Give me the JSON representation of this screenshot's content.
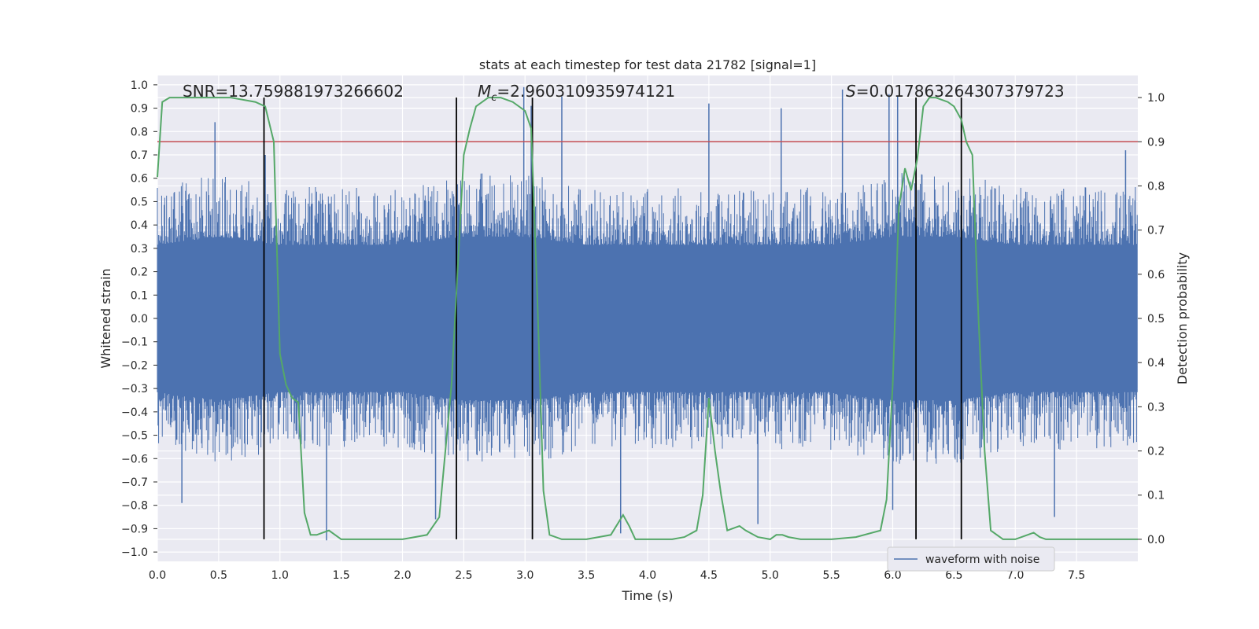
{
  "chart_data": {
    "type": "line",
    "title": "stats at each timestep for test data 21782 [signal=1]",
    "xlabel": "Time (s)",
    "ylabel": "Whitened strain",
    "y2label": "Detection probability",
    "xlim": [
      0.0,
      8.0
    ],
    "ylim": [
      -1.04,
      1.04
    ],
    "y2lim": [
      -0.05,
      1.05
    ],
    "x_ticks": [
      0.0,
      0.5,
      1.0,
      1.5,
      2.0,
      2.5,
      3.0,
      3.5,
      4.0,
      4.5,
      5.0,
      5.5,
      6.0,
      6.5,
      7.0,
      7.5
    ],
    "x_tick_labels": [
      "0.0",
      "0.5",
      "1.0",
      "1.5",
      "2.0",
      "2.5",
      "3.0",
      "3.5",
      "4.0",
      "4.5",
      "5.0",
      "5.5",
      "6.0",
      "6.5",
      "7.0",
      "7.5"
    ],
    "y_ticks": [
      1.0,
      0.9,
      0.8,
      0.7,
      0.6,
      0.5,
      0.4,
      0.3,
      0.2,
      0.1,
      0.0,
      -0.1,
      -0.2,
      -0.3,
      -0.4,
      -0.5,
      -0.6,
      -0.7,
      -0.8,
      -0.9,
      -1.0
    ],
    "y_tick_labels": [
      "1.0",
      "0.9",
      "0.8",
      "0.7",
      "0.6",
      "0.5",
      "0.4",
      "0.3",
      "0.2",
      "0.1",
      "0.0",
      "−0.1",
      "−0.2",
      "−0.3",
      "−0.4",
      "−0.5",
      "−0.6",
      "−0.7",
      "−0.8",
      "−0.9",
      "−1.0"
    ],
    "y2_ticks": [
      1.0,
      0.9,
      0.8,
      0.7,
      0.6,
      0.5,
      0.4,
      0.3,
      0.2,
      0.1,
      0.0
    ],
    "y2_tick_labels": [
      "1.0",
      "0.9",
      "0.8",
      "0.7",
      "0.6",
      "0.5",
      "0.4",
      "0.3",
      "0.2",
      "0.1",
      "0.0"
    ],
    "grid": true,
    "legend_position": "bottom-right",
    "annotations": {
      "snr": "SNR=13.759881973266602",
      "mc_symbol": "M",
      "mc_sub": "c",
      "mc_value": "=2.960310935974121",
      "s_symbol": "S",
      "s_value": "=0.017863264307379723"
    },
    "threshold": {
      "value": 0.9,
      "axis": "y2",
      "color": "#c44e52"
    },
    "event_lines": [
      0.87,
      2.44,
      3.06,
      6.19,
      6.56
    ],
    "series": [
      {
        "name": "waveform with noise",
        "color": "#4c72b0",
        "envelope": {
          "x": [
            0.0,
            0.5,
            1.0,
            1.5,
            2.0,
            2.5,
            3.0,
            3.5,
            4.0,
            4.5,
            5.0,
            5.5,
            6.0,
            6.5,
            7.0,
            7.5,
            8.0
          ],
          "typical_upper": [
            0.45,
            0.5,
            0.45,
            0.45,
            0.45,
            0.5,
            0.5,
            0.45,
            0.45,
            0.45,
            0.45,
            0.45,
            0.5,
            0.5,
            0.45,
            0.45,
            0.45
          ],
          "typical_lower": [
            -0.45,
            -0.5,
            -0.45,
            -0.45,
            -0.45,
            -0.5,
            -0.5,
            -0.45,
            -0.45,
            -0.45,
            -0.45,
            -0.45,
            -0.5,
            -0.5,
            -0.45,
            -0.45,
            -0.45
          ]
        },
        "spikes": [
          {
            "x": 0.47,
            "y": 0.84
          },
          {
            "x": 0.88,
            "y": 0.7
          },
          {
            "x": 1.38,
            "y": -0.95
          },
          {
            "x": 2.99,
            "y": 0.99
          },
          {
            "x": 3.05,
            "y": 0.91
          },
          {
            "x": 3.3,
            "y": 0.95
          },
          {
            "x": 3.78,
            "y": -0.92
          },
          {
            "x": 4.5,
            "y": 0.92
          },
          {
            "x": 4.9,
            "y": -0.88
          },
          {
            "x": 5.09,
            "y": 0.9
          },
          {
            "x": 5.59,
            "y": 0.98
          },
          {
            "x": 5.97,
            "y": 0.96
          },
          {
            "x": 6.04,
            "y": 0.95
          },
          {
            "x": 7.32,
            "y": -0.85
          },
          {
            "x": 0.2,
            "y": -0.79
          },
          {
            "x": 2.27,
            "y": -0.86
          },
          {
            "x": 6.0,
            "y": -0.82
          },
          {
            "x": 7.9,
            "y": 0.72
          }
        ]
      },
      {
        "name": "",
        "color": "#55a868",
        "axis": "y2",
        "x": [
          0.0,
          0.04,
          0.1,
          0.2,
          0.4,
          0.6,
          0.8,
          0.88,
          0.95,
          1.0,
          1.05,
          1.1,
          1.15,
          1.2,
          1.25,
          1.3,
          1.35,
          1.4,
          1.5,
          1.6,
          1.8,
          2.0,
          2.1,
          2.2,
          2.3,
          2.4,
          2.5,
          2.55,
          2.6,
          2.7,
          2.8,
          2.9,
          3.0,
          3.05,
          3.1,
          3.15,
          3.2,
          3.3,
          3.5,
          3.6,
          3.7,
          3.8,
          3.85,
          3.9,
          4.0,
          4.1,
          4.2,
          4.3,
          4.4,
          4.45,
          4.5,
          4.55,
          4.6,
          4.65,
          4.75,
          4.8,
          4.9,
          5.0,
          5.05,
          5.1,
          5.15,
          5.25,
          5.35,
          5.5,
          5.7,
          5.9,
          5.95,
          6.0,
          6.05,
          6.1,
          6.15,
          6.2,
          6.25,
          6.3,
          6.35,
          6.45,
          6.5,
          6.56,
          6.6,
          6.65,
          6.7,
          6.75,
          6.8,
          6.9,
          7.0,
          7.1,
          7.15,
          7.2,
          7.25,
          7.35,
          7.5,
          7.6,
          7.8,
          8.0
        ],
        "y": [
          0.82,
          0.99,
          1.0,
          1.0,
          1.0,
          1.0,
          0.99,
          0.98,
          0.9,
          0.42,
          0.35,
          0.32,
          0.31,
          0.06,
          0.01,
          0.01,
          0.015,
          0.02,
          0.0,
          0.0,
          0.0,
          0.0,
          0.005,
          0.01,
          0.05,
          0.35,
          0.87,
          0.93,
          0.98,
          1.0,
          1.0,
          0.99,
          0.97,
          0.93,
          0.55,
          0.11,
          0.01,
          0.0,
          0.0,
          0.005,
          0.01,
          0.055,
          0.03,
          0.0,
          0.0,
          0.0,
          0.0,
          0.005,
          0.02,
          0.1,
          0.32,
          0.2,
          0.1,
          0.02,
          0.03,
          0.02,
          0.005,
          0.0,
          0.01,
          0.01,
          0.005,
          0.0,
          0.0,
          0.0,
          0.005,
          0.02,
          0.09,
          0.35,
          0.75,
          0.84,
          0.79,
          0.86,
          0.98,
          1.0,
          1.0,
          0.99,
          0.98,
          0.95,
          0.9,
          0.87,
          0.5,
          0.2,
          0.02,
          0.0,
          0.0,
          0.01,
          0.015,
          0.005,
          0.0,
          0.0,
          0.0,
          0.0,
          0.0,
          0.0
        ]
      }
    ]
  }
}
